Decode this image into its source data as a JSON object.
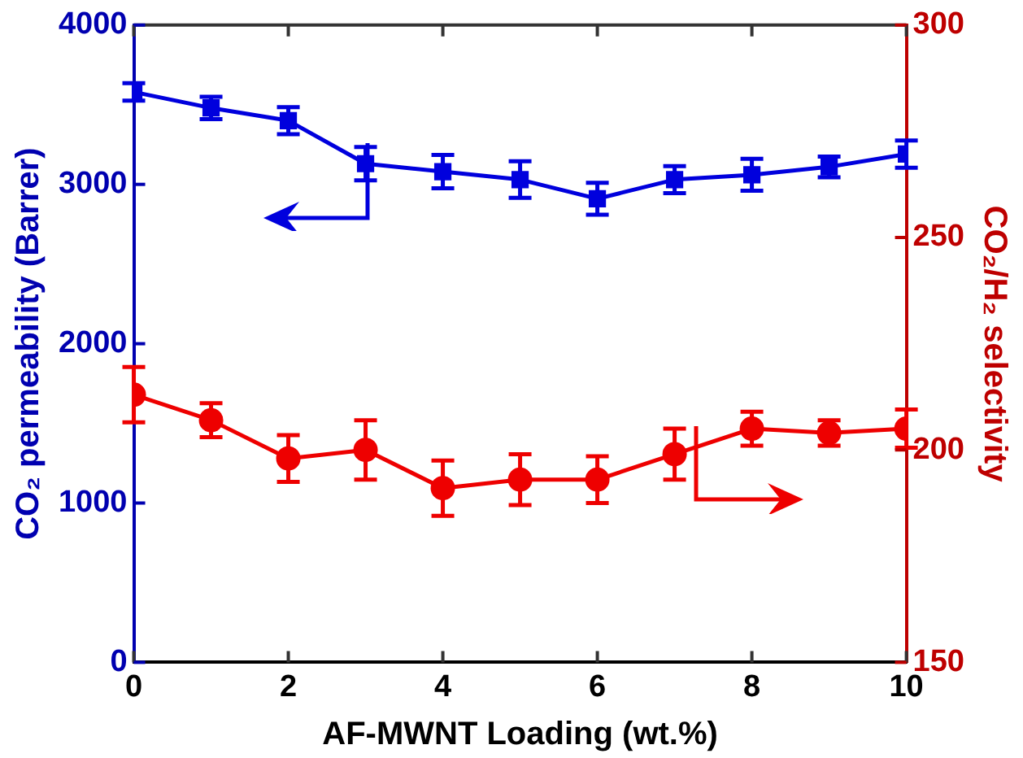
{
  "chart_data": {
    "type": "line",
    "xlabel": "AF-MWNT Loading (wt.%)",
    "ylabel": "CO₂ permeability (Barrer)",
    "y2label": "CO₂/H₂ selectivity",
    "x": [
      0,
      1,
      2,
      3,
      4,
      5,
      6,
      7,
      8,
      9,
      10
    ],
    "xlim": [
      0,
      10
    ],
    "xticks": [
      0,
      2,
      4,
      6,
      8,
      10
    ],
    "ylim": [
      0,
      4000
    ],
    "yticks": [
      0,
      1000,
      2000,
      3000,
      4000
    ],
    "y2lim": [
      150,
      300
    ],
    "y2ticks": [
      150,
      200,
      250,
      300
    ],
    "series": [
      {
        "color": "#0000dd",
        "marker": "square",
        "values": [
          3580,
          3480,
          3400,
          3130,
          3080,
          3030,
          2910,
          3030,
          3060,
          3110,
          3190
        ],
        "errors": [
          55,
          70,
          85,
          105,
          105,
          115,
          100,
          85,
          100,
          65,
          85
        ]
      },
      {
        "color": "#ee0000",
        "marker": "circle",
        "axis": "y2",
        "values": [
          213,
          207,
          198,
          200,
          191,
          193,
          193,
          199,
          205,
          204,
          205
        ],
        "errors": [
          6.5,
          4,
          5.5,
          7,
          6.5,
          6,
          5.5,
          6,
          4,
          3,
          4.5
        ]
      }
    ],
    "legend": false,
    "grid": false,
    "line_style": "solid"
  }
}
